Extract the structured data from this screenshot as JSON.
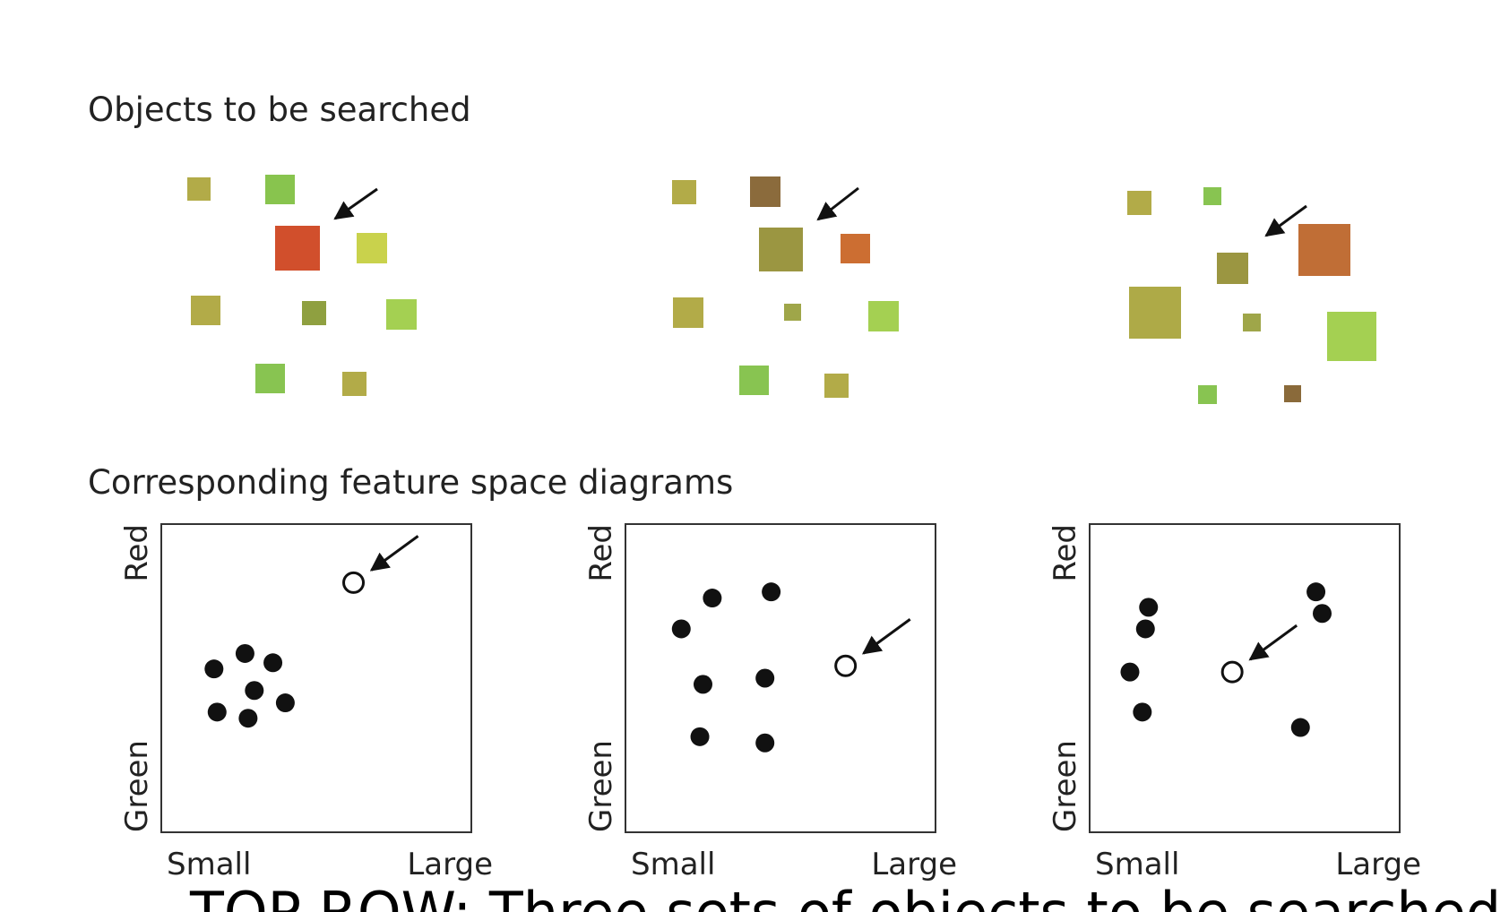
{
  "headings": {
    "objects": "Objects to be searched",
    "feature_space": "Corresponding feature space diagrams"
  },
  "caption": "TOP ROW: Three sets of objects to be searched",
  "axes": {
    "y_top": "Red",
    "y_bottom": "Green",
    "x_left": "Small",
    "x_right": "Large"
  },
  "colors": {
    "red_target": "#d4502c",
    "brown": "#8a6a3a",
    "olive": "#a8a746",
    "green": "#88c451"
  },
  "chart_data": [
    {
      "type": "scatter",
      "x_meaning": "size (Small → Large)",
      "y_meaning": "color (Green → Red)",
      "xlim": [
        0,
        1
      ],
      "ylim": [
        0,
        1
      ],
      "distractors": [
        [
          0.17,
          0.53
        ],
        [
          0.27,
          0.58
        ],
        [
          0.36,
          0.55
        ],
        [
          0.3,
          0.46
        ],
        [
          0.4,
          0.42
        ],
        [
          0.18,
          0.39
        ],
        [
          0.28,
          0.37
        ]
      ],
      "target": [
        0.62,
        0.81
      ],
      "target_arrow": true
    },
    {
      "type": "scatter",
      "x_meaning": "size (Small → Large)",
      "y_meaning": "color (Green → Red)",
      "xlim": [
        0,
        1
      ],
      "ylim": [
        0,
        1
      ],
      "distractors": [
        [
          0.28,
          0.76
        ],
        [
          0.47,
          0.78
        ],
        [
          0.18,
          0.66
        ],
        [
          0.25,
          0.48
        ],
        [
          0.45,
          0.5
        ],
        [
          0.24,
          0.31
        ],
        [
          0.45,
          0.29
        ]
      ],
      "target": [
        0.71,
        0.54
      ],
      "target_arrow": true
    },
    {
      "type": "scatter",
      "x_meaning": "size (Small → Large)",
      "y_meaning": "color (Green → Red)",
      "xlim": [
        0,
        1
      ],
      "ylim": [
        0,
        1
      ],
      "distractors": [
        [
          0.19,
          0.73
        ],
        [
          0.18,
          0.66
        ],
        [
          0.13,
          0.52
        ],
        [
          0.17,
          0.39
        ],
        [
          0.73,
          0.78
        ],
        [
          0.75,
          0.71
        ],
        [
          0.68,
          0.34
        ]
      ],
      "target": [
        0.46,
        0.52
      ],
      "target_arrow": true
    }
  ]
}
